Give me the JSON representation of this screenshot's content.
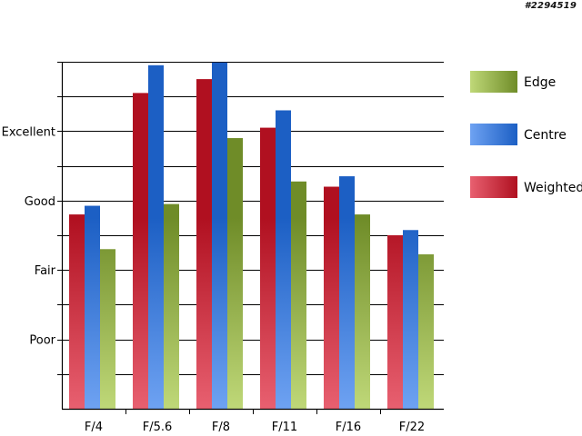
{
  "watermark": "#2294519",
  "chart_data": {
    "type": "bar",
    "categories": [
      "F/4",
      "F/5.6",
      "F/8",
      "F/11",
      "F/16",
      "F/22"
    ],
    "ylim": [
      0,
      10
    ],
    "yticks": [
      {
        "value": 2,
        "label": "Poor"
      },
      {
        "value": 4,
        "label": "Fair"
      },
      {
        "value": 6,
        "label": "Good"
      },
      {
        "value": 8,
        "label": "Excellent"
      }
    ],
    "grid": true,
    "legend": "right",
    "series": [
      {
        "name": "Weighted",
        "values": [
          5.6,
          9.1,
          9.5,
          8.1,
          6.4,
          5.0
        ],
        "color_dark": "#b01020",
        "color_light": "#e86070"
      },
      {
        "name": "Centre",
        "values": [
          5.85,
          9.9,
          9.98,
          8.6,
          6.7,
          5.15
        ],
        "color_dark": "#1c5fc4",
        "color_light": "#6ea2f2"
      },
      {
        "name": "Edge",
        "values": [
          4.6,
          5.9,
          7.8,
          6.55,
          5.6,
          4.45
        ],
        "color_dark": "#6f8c28",
        "color_light": "#bfd878"
      }
    ],
    "legend_order": [
      "Edge",
      "Centre",
      "Weighted"
    ]
  }
}
